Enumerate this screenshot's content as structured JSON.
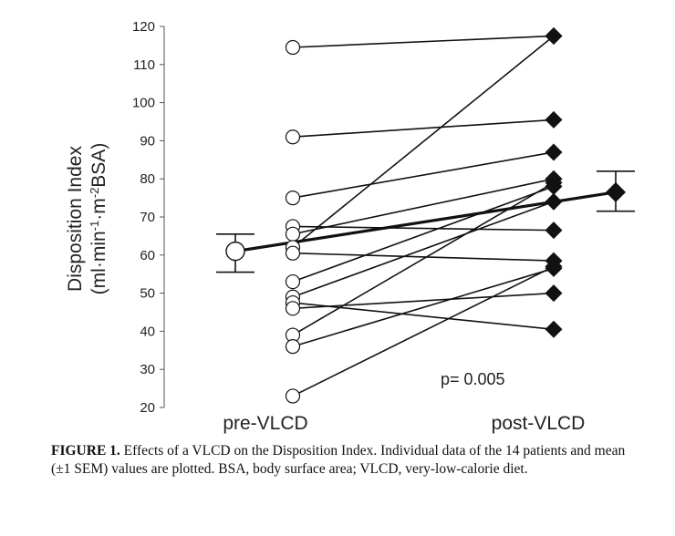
{
  "chart_data": {
    "type": "line",
    "title": "",
    "ylabel_line1": "Disposition Index",
    "ylabel_line2_pre": "(ml·min",
    "ylabel_sup1": "-1",
    "ylabel_mid": "·m",
    "ylabel_sup2": "-2",
    "ylabel_post": "BSA)",
    "categories": [
      "pre-VLCD",
      "post-VLCD"
    ],
    "ylim": [
      20,
      120
    ],
    "yticks": [
      20,
      30,
      40,
      50,
      60,
      70,
      80,
      90,
      100,
      110,
      120
    ],
    "series": [
      {
        "values": [
          114.5,
          117.5
        ]
      },
      {
        "values": [
          91,
          95.5
        ]
      },
      {
        "values": [
          75,
          87
        ]
      },
      {
        "values": [
          67.5,
          66.5
        ]
      },
      {
        "values": [
          65.5,
          80
        ]
      },
      {
        "values": [
          62,
          117.5
        ]
      },
      {
        "values": [
          60.5,
          58.5
        ]
      },
      {
        "values": [
          53,
          78
        ]
      },
      {
        "values": [
          49,
          74
        ]
      },
      {
        "values": [
          47.5,
          40.5
        ]
      },
      {
        "values": [
          46,
          50
        ]
      },
      {
        "values": [
          39,
          79
        ]
      },
      {
        "values": [
          36,
          56.5
        ]
      },
      {
        "values": [
          23,
          57
        ]
      }
    ],
    "mean": {
      "pre": {
        "value": 61,
        "sem_low": 55.5,
        "sem_high": 65.5
      },
      "post": {
        "value": 76.5,
        "sem_low": 71.5,
        "sem_high": 82
      }
    },
    "annotation": "p= 0.005",
    "grid": false,
    "legend": "none"
  },
  "caption": {
    "label": "FIGURE 1.",
    "text": " Effects of a VLCD on the Disposition Index. Individual data of the 14 patients and mean (±1 SEM) values are plotted. BSA, body surface area; VLCD, very-low-calorie diet."
  }
}
